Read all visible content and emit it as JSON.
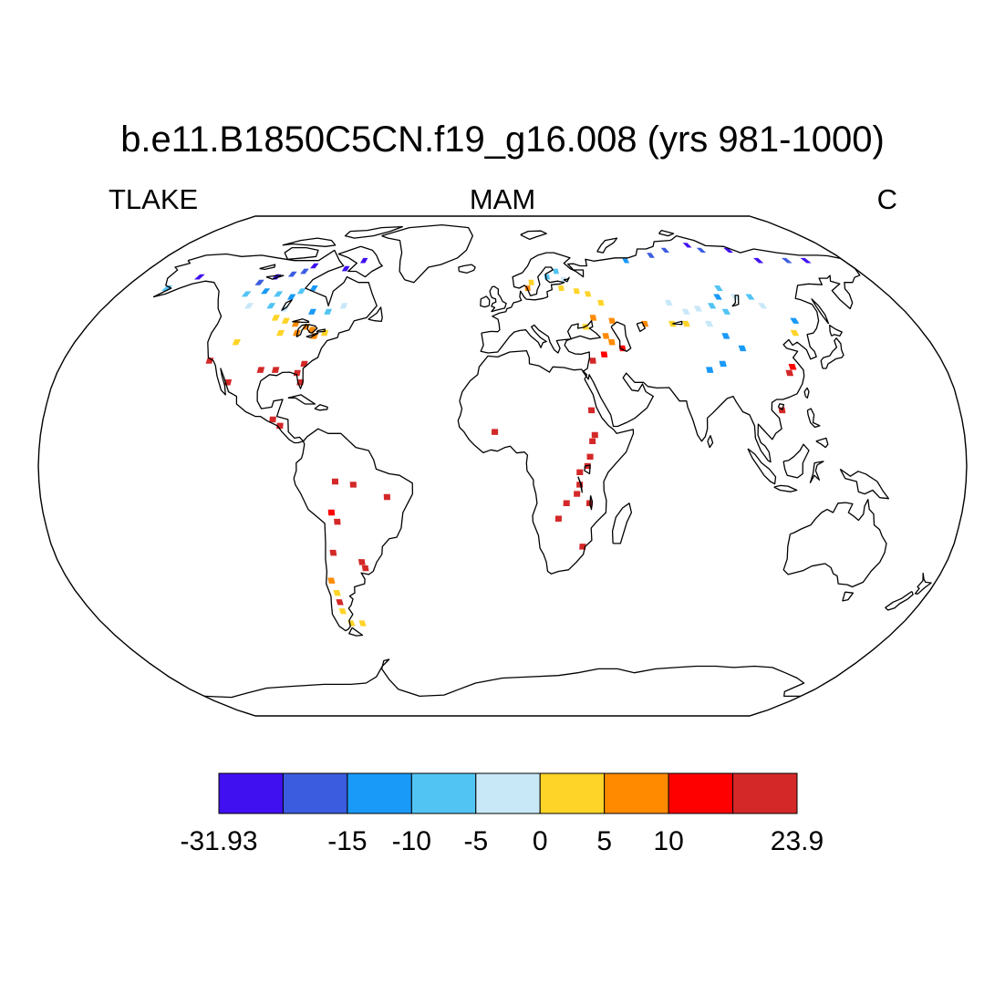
{
  "title": "b.e11.B1850C5CN.f19_g16.008 (yrs 981-1000)",
  "left_label": "TLAKE",
  "center_label": "MAM",
  "right_label": "C",
  "colorbar": {
    "colors": [
      "#4010f0",
      "#3c5ce0",
      "#1a9af8",
      "#52c4f4",
      "#c8e8f8",
      "#ffd428",
      "#ff8a00",
      "#ff0000",
      "#d42828"
    ],
    "labels": [
      "-31.93",
      "-15",
      "-10",
      "-5",
      "0",
      "5",
      "10",
      "23.9"
    ],
    "boundaries": [
      -31.93,
      -20,
      -15,
      -10,
      -5,
      0,
      5,
      10,
      15,
      23.9
    ]
  },
  "cells": [
    {
      "lon": -118,
      "lat": 60,
      "c": 1
    },
    {
      "lon": -112,
      "lat": 62,
      "c": 0
    },
    {
      "lon": -105,
      "lat": 63,
      "c": 1
    },
    {
      "lon": -100,
      "lat": 64,
      "c": 1
    },
    {
      "lon": -97,
      "lat": 66,
      "c": 0
    },
    {
      "lon": -80,
      "lat": 65,
      "c": 0
    },
    {
      "lon": -73,
      "lat": 68,
      "c": 0
    },
    {
      "lon": -112,
      "lat": 57,
      "c": 2
    },
    {
      "lon": -105,
      "lat": 56,
      "c": 3
    },
    {
      "lon": -98,
      "lat": 55,
      "c": 2
    },
    {
      "lon": -95,
      "lat": 57,
      "c": 3
    },
    {
      "lon": -90,
      "lat": 58,
      "c": 2
    },
    {
      "lon": -120,
      "lat": 56,
      "c": 3
    },
    {
      "lon": -115,
      "lat": 52,
      "c": 4
    },
    {
      "lon": -105,
      "lat": 52,
      "c": 3
    },
    {
      "lon": -98,
      "lat": 51,
      "c": 4
    },
    {
      "lon": -85,
      "lat": 50,
      "c": 2
    },
    {
      "lon": -78,
      "lat": 50,
      "c": 3
    },
    {
      "lon": -72,
      "lat": 52,
      "c": 4
    },
    {
      "lon": -150,
      "lat": 62,
      "c": 0
    },
    {
      "lon": -160,
      "lat": 58,
      "c": 3
    },
    {
      "lon": -100,
      "lat": 48,
      "c": 5
    },
    {
      "lon": -95,
      "lat": 47,
      "c": 5
    },
    {
      "lon": -90,
      "lat": 46,
      "c": 6
    },
    {
      "lon": -85,
      "lat": 45,
      "c": 6
    },
    {
      "lon": -82,
      "lat": 44,
      "c": 6
    },
    {
      "lon": -88,
      "lat": 43,
      "c": 6
    },
    {
      "lon": -80,
      "lat": 42,
      "c": 6
    },
    {
      "lon": -76,
      "lat": 43,
      "c": 5
    },
    {
      "lon": -95,
      "lat": 43,
      "c": 5
    },
    {
      "lon": -112,
      "lat": 40,
      "c": 5
    },
    {
      "lon": -120,
      "lat": 34,
      "c": 8
    },
    {
      "lon": -98,
      "lat": 31,
      "c": 8
    },
    {
      "lon": -92,
      "lat": 31,
      "c": 8
    },
    {
      "lon": -81,
      "lat": 33,
      "c": 8
    },
    {
      "lon": -83,
      "lat": 30,
      "c": 8
    },
    {
      "lon": -81,
      "lat": 27,
      "c": 8
    },
    {
      "lon": -110,
      "lat": 27,
      "c": 8
    },
    {
      "lon": -90,
      "lat": 15,
      "c": 8
    },
    {
      "lon": -87,
      "lat": 13,
      "c": 8
    },
    {
      "lon": -65,
      "lat": -5,
      "c": 8
    },
    {
      "lon": -58,
      "lat": -6,
      "c": 8
    },
    {
      "lon": -45,
      "lat": -10,
      "c": 8
    },
    {
      "lon": -67,
      "lat": -15,
      "c": 7
    },
    {
      "lon": -65,
      "lat": -18,
      "c": 8
    },
    {
      "lon": -68,
      "lat": -28,
      "c": 8
    },
    {
      "lon": -57,
      "lat": -31,
      "c": 8
    },
    {
      "lon": -56,
      "lat": -33,
      "c": 8
    },
    {
      "lon": -71,
      "lat": -37,
      "c": 6
    },
    {
      "lon": -70,
      "lat": -41,
      "c": 5
    },
    {
      "lon": -70,
      "lat": -44,
      "c": 8
    },
    {
      "lon": -70,
      "lat": -47,
      "c": 5
    },
    {
      "lon": -68,
      "lat": -51,
      "c": 5
    },
    {
      "lon": -63,
      "lat": -51,
      "c": 5
    },
    {
      "lon": 12,
      "lat": 58,
      "c": 6
    },
    {
      "lon": 14,
      "lat": 60,
      "c": 5
    },
    {
      "lon": 22,
      "lat": 62,
      "c": 3
    },
    {
      "lon": 27,
      "lat": 64,
      "c": 3
    },
    {
      "lon": 30,
      "lat": 61,
      "c": 4
    },
    {
      "lon": 28,
      "lat": 58,
      "c": 5
    },
    {
      "lon": 35,
      "lat": 57,
      "c": 5
    },
    {
      "lon": 40,
      "lat": 56,
      "c": 5
    },
    {
      "lon": 45,
      "lat": 53,
      "c": 5
    },
    {
      "lon": 40,
      "lat": 48,
      "c": 6
    },
    {
      "lon": 48,
      "lat": 47,
      "c": 6
    },
    {
      "lon": 36,
      "lat": 45,
      "c": 5
    },
    {
      "lon": 44,
      "lat": 42,
      "c": 6
    },
    {
      "lon": 46,
      "lat": 40,
      "c": 6
    },
    {
      "lon": 42,
      "lat": 36,
      "c": 7
    },
    {
      "lon": 50,
      "lat": 38,
      "c": 7
    },
    {
      "lon": 37,
      "lat": 34,
      "c": 8
    },
    {
      "lon": 62,
      "lat": 46,
      "c": 6
    },
    {
      "lon": 74,
      "lat": 46,
      "c": 5
    },
    {
      "lon": 80,
      "lat": 46,
      "c": 5
    },
    {
      "lon": 82,
      "lat": 50,
      "c": 4
    },
    {
      "lon": 76,
      "lat": 53,
      "c": 4
    },
    {
      "lon": 88,
      "lat": 51,
      "c": 4
    },
    {
      "lon": 95,
      "lat": 52,
      "c": 3
    },
    {
      "lon": 100,
      "lat": 55,
      "c": 2
    },
    {
      "lon": 103,
      "lat": 58,
      "c": 3
    },
    {
      "lon": 108,
      "lat": 55,
      "c": 4
    },
    {
      "lon": 115,
      "lat": 55,
      "c": 3
    },
    {
      "lon": 118,
      "lat": 52,
      "c": 4
    },
    {
      "lon": 100,
      "lat": 50,
      "c": 3
    },
    {
      "lon": 90,
      "lat": 46,
      "c": 4
    },
    {
      "lon": 95,
      "lat": 42,
      "c": 2
    },
    {
      "lon": 100,
      "lat": 38,
      "c": 2
    },
    {
      "lon": 90,
      "lat": 33,
      "c": 2
    },
    {
      "lon": 84,
      "lat": 31,
      "c": 2
    },
    {
      "lon": 125,
      "lat": 43,
      "c": 5
    },
    {
      "lon": 128,
      "lat": 47,
      "c": 2
    },
    {
      "lon": 118,
      "lat": 32,
      "c": 7
    },
    {
      "lon": 116,
      "lat": 30,
      "c": 8
    },
    {
      "lon": 110,
      "lat": 18,
      "c": 8
    },
    {
      "lon": 80,
      "lat": 70,
      "c": 1
    },
    {
      "lon": 65,
      "lat": 68,
      "c": 2
    },
    {
      "lon": 105,
      "lat": 74,
      "c": 0
    },
    {
      "lon": 110,
      "lat": 72,
      "c": 1
    },
    {
      "lon": 125,
      "lat": 72,
      "c": 0
    },
    {
      "lon": 135,
      "lat": 68,
      "c": 0
    },
    {
      "lon": 150,
      "lat": 68,
      "c": 1
    },
    {
      "lon": 160,
      "lat": 68,
      "c": 0
    },
    {
      "lon": 90,
      "lat": 72,
      "c": 1
    },
    {
      "lon": 35,
      "lat": 18,
      "c": 8
    },
    {
      "lon": 36,
      "lat": 10,
      "c": 8
    },
    {
      "lon": 35,
      "lat": 8,
      "c": 8
    },
    {
      "lon": 34,
      "lat": 3,
      "c": 8
    },
    {
      "lon": 33,
      "lat": 0,
      "c": 8
    },
    {
      "lon": 30,
      "lat": -2,
      "c": 8
    },
    {
      "lon": 30,
      "lat": -6,
      "c": 8
    },
    {
      "lon": 29,
      "lat": -9,
      "c": 8
    },
    {
      "lon": 34,
      "lat": -12,
      "c": 8
    },
    {
      "lon": 25,
      "lat": -12,
      "c": 8
    },
    {
      "lon": 22,
      "lat": -17,
      "c": 8
    },
    {
      "lon": 32,
      "lat": -26,
      "c": 8
    },
    {
      "lon": -3,
      "lat": 11,
      "c": 8
    }
  ]
}
